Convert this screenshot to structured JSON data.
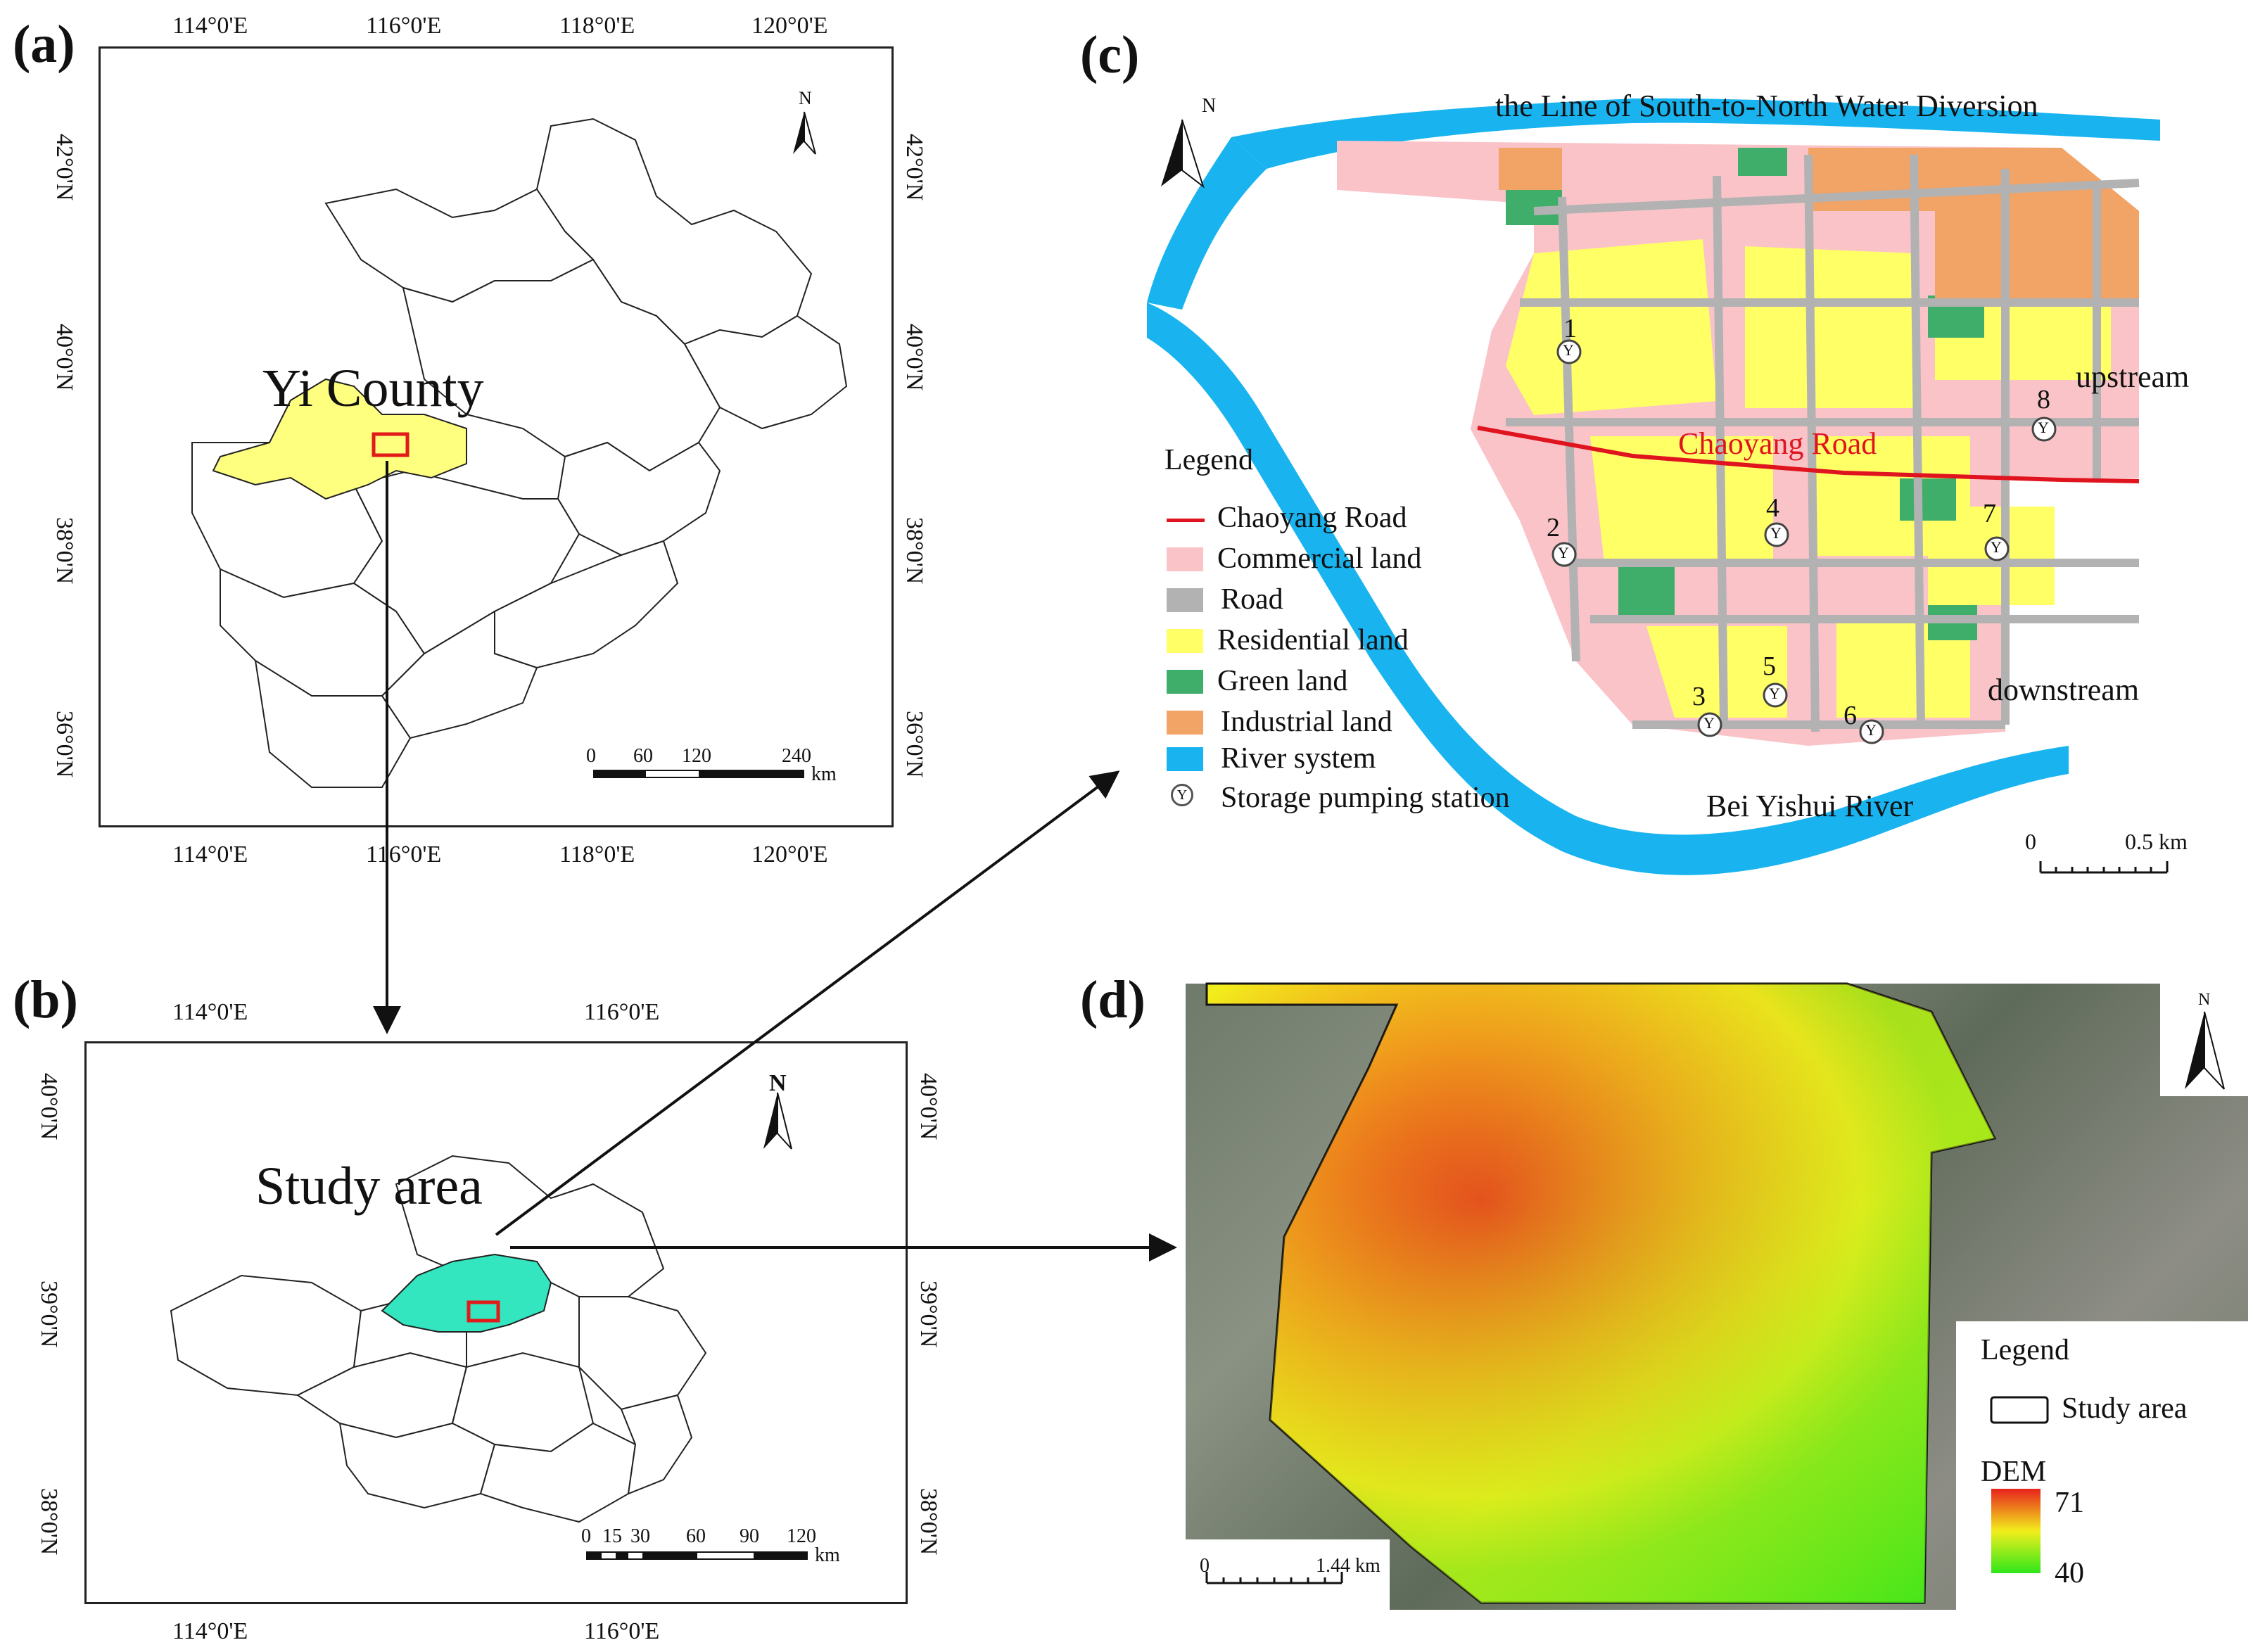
{
  "panels": {
    "a": {
      "letter": "(a)",
      "lon_ticks": [
        "114°0'E",
        "116°0'E",
        "118°0'E",
        "120°0'E"
      ],
      "lat_ticks": [
        "42°0'N",
        "40°0'N",
        "38°0'N",
        "36°0'N"
      ],
      "highlight_label": "Yi County",
      "scale": {
        "labels": [
          "0",
          "60",
          "120",
          "240"
        ],
        "unit": "km"
      },
      "north": "N",
      "colors": {
        "province_fill": "#ffffff",
        "highlight_fill": "#ffff7f",
        "box": "#e11a1a"
      }
    },
    "b": {
      "letter": "(b)",
      "lon_ticks": [
        "114°0'E",
        "116°0'E"
      ],
      "lat_ticks": [
        "40°0'N",
        "39°0'N",
        "38°0'N"
      ],
      "highlight_label": "Study area",
      "scale": {
        "labels": [
          "0",
          "15",
          "30",
          "60",
          "90",
          "120"
        ],
        "unit": "km"
      },
      "north": "N",
      "colors": {
        "highlight_fill": "#33e6c0",
        "box": "#e11a1a"
      }
    },
    "c": {
      "letter": "(c)",
      "title": "the Line of South-to-North Water Diversion",
      "river_label": "Bei Yishui River",
      "road_label": "Chaoyang Road",
      "upstream": "upstream",
      "downstream": "downstream",
      "north": "N",
      "scale": {
        "labels": [
          "0",
          "0.5 km"
        ]
      },
      "legend": {
        "title": "Legend",
        "items": [
          {
            "label": "Chaoyang Road",
            "kind": "line",
            "color": "#e0141e"
          },
          {
            "label": "Commercial land",
            "kind": "fill",
            "color": "#f9c3c8"
          },
          {
            "label": "Road",
            "kind": "fill",
            "color": "#b2b2b2"
          },
          {
            "label": "Residential land",
            "kind": "fill",
            "color": "#ffff66"
          },
          {
            "label": "Green land",
            "kind": "fill",
            "color": "#3fae6a"
          },
          {
            "label": "Industrial land",
            "kind": "fill",
            "color": "#f2a366"
          },
          {
            "label": "River system",
            "kind": "fill",
            "color": "#19b4f0"
          },
          {
            "label": "Storage pumping station",
            "kind": "symbol",
            "color": "#555555"
          }
        ]
      },
      "stations": [
        "1",
        "2",
        "3",
        "4",
        "5",
        "6",
        "7",
        "8"
      ],
      "station_symbol": "Y"
    },
    "d": {
      "letter": "(d)",
      "north": "N",
      "legend": {
        "title": "Legend",
        "study_area": "Study area",
        "dem_title": "DEM",
        "dem_max": "71",
        "dem_min": "40"
      },
      "scale": {
        "labels": [
          "0",
          "1.44 km"
        ]
      },
      "colors": {
        "high": "#e8221d",
        "mid": "#f2ee1c",
        "low": "#2ee61a"
      }
    }
  }
}
